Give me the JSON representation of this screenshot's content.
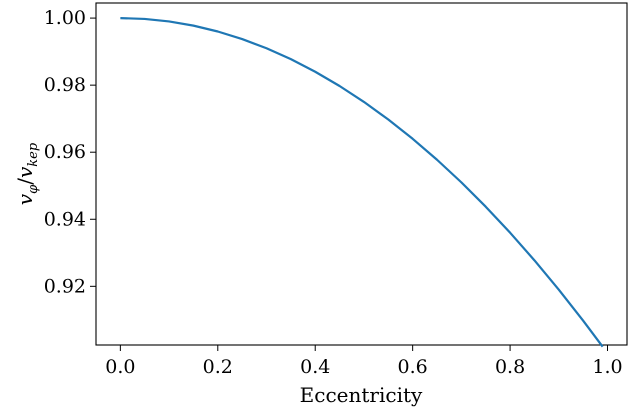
{
  "chart_data": {
    "type": "line",
    "xlabel": "Eccentricity",
    "ylabel_parts": {
      "num": "v",
      "num_sub": "φ",
      "den": "v",
      "den_sub": "kep"
    },
    "xlim": [
      -0.05,
      1.04
    ],
    "ylim": [
      0.9025,
      1.0045
    ],
    "x_ticks": [
      0.0,
      0.2,
      0.4,
      0.6,
      0.8,
      1.0
    ],
    "x_tick_labels": [
      "0.0",
      "0.2",
      "0.4",
      "0.6",
      "0.8",
      "1.0"
    ],
    "y_ticks": [
      0.92,
      0.94,
      0.96,
      0.98,
      1.0
    ],
    "y_tick_labels": [
      "0.92",
      "0.94",
      "0.96",
      "0.98",
      "1.00"
    ],
    "grid": false,
    "series": [
      {
        "color": "#1f77b4",
        "x": [
          0.0,
          0.05,
          0.1,
          0.15,
          0.2,
          0.25,
          0.3,
          0.35,
          0.4,
          0.45,
          0.5,
          0.55,
          0.6,
          0.65,
          0.7,
          0.75,
          0.8,
          0.85,
          0.9,
          0.95,
          0.99
        ],
        "y": [
          1.0,
          0.99975,
          0.999,
          0.99775,
          0.996,
          0.99375,
          0.991,
          0.98775,
          0.984,
          0.97975,
          0.975,
          0.96975,
          0.964,
          0.95775,
          0.951,
          0.94375,
          0.936,
          0.92775,
          0.919,
          0.90975,
          0.902
        ]
      }
    ]
  }
}
